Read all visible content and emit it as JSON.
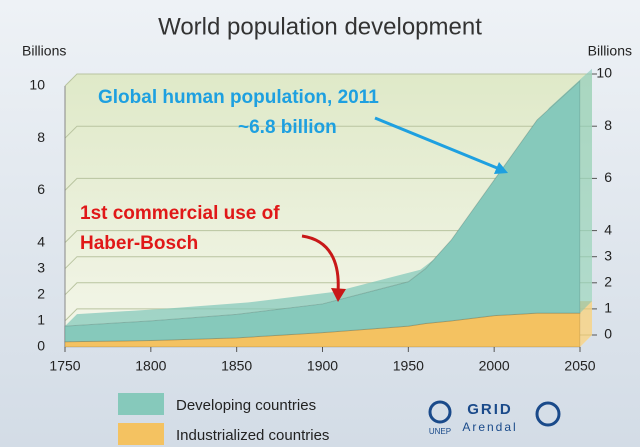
{
  "chart_data": {
    "type": "stacked-area",
    "title": "World population development",
    "y_label": "Billions",
    "y2_label": "Billions",
    "x": [
      1750,
      1800,
      1850,
      1900,
      1950,
      1960,
      1975,
      2000,
      2025,
      2050
    ],
    "series": [
      {
        "name": "Industrialized countries",
        "color": "#f4c261",
        "values": [
          0.2,
          0.25,
          0.35,
          0.55,
          0.8,
          0.9,
          1.0,
          1.2,
          1.3,
          1.3
        ]
      },
      {
        "name": "Developing countries",
        "color": "#86c9bb",
        "values": [
          0.6,
          0.75,
          0.9,
          1.1,
          1.7,
          2.1,
          3.1,
          5.2,
          7.4,
          8.9
        ]
      }
    ],
    "xlim": [
      1750,
      2050
    ],
    "xticks": [
      1750,
      1800,
      1850,
      1900,
      1950,
      2000,
      2050
    ],
    "ylim": [
      0,
      10
    ],
    "yticks": [
      0,
      1,
      2,
      3,
      4,
      6,
      8,
      10
    ],
    "y2lim": [
      0,
      10
    ],
    "y2ticks": [
      0,
      1,
      2,
      3,
      4,
      6,
      8,
      10
    ],
    "grid": true,
    "annotations": [
      {
        "lines": [
          "Global human population, 2011",
          "~6.8 billion"
        ],
        "color": "#1ea0e0"
      },
      {
        "lines": [
          "1st commercial use of",
          "Haber-Bosch"
        ],
        "color": "#e01818"
      }
    ],
    "logos": [
      "UNEP",
      "GRID",
      "Arendal"
    ]
  }
}
